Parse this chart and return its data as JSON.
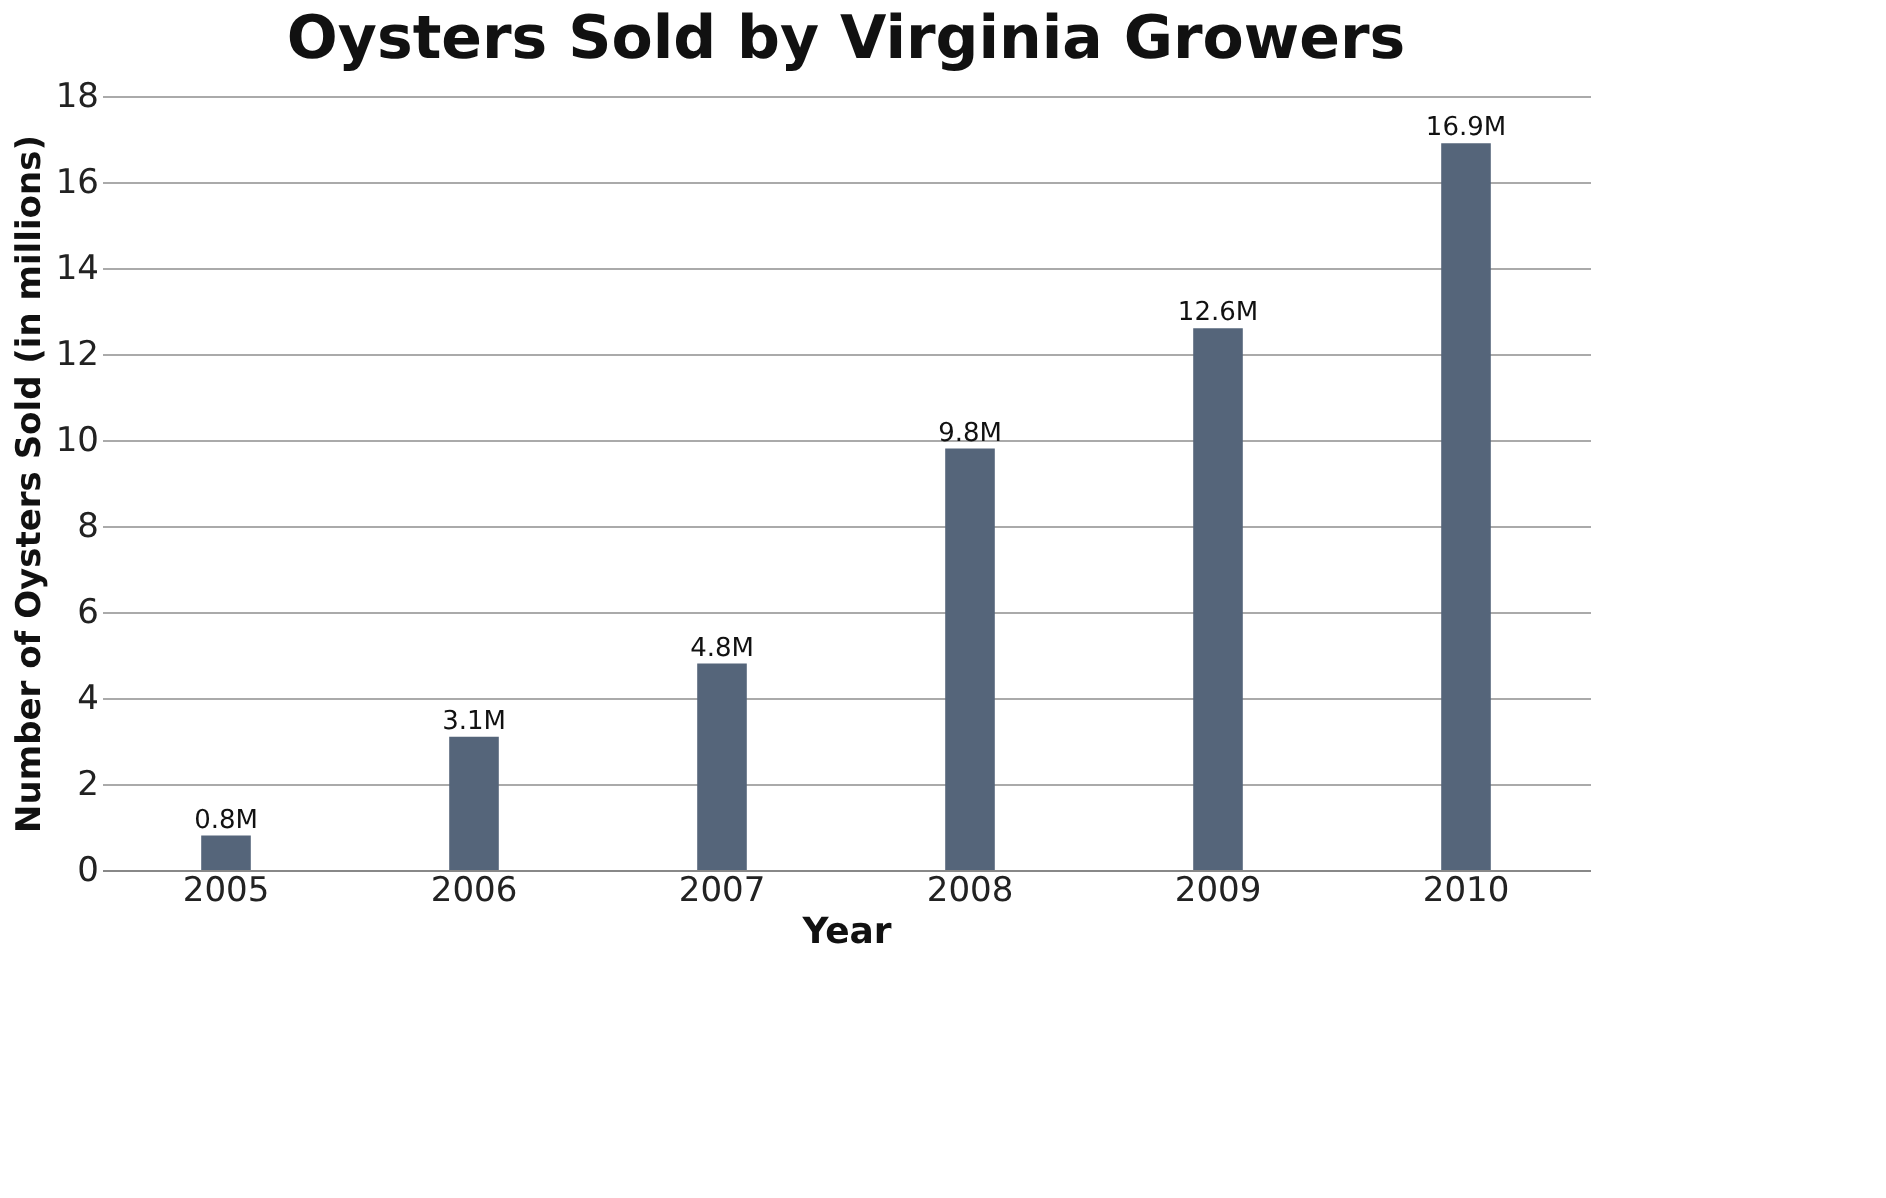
{
  "chart_data": {
    "type": "bar",
    "title": "Oysters Sold by Virginia Growers",
    "xlabel": "Year",
    "ylabel": "Number of Oysters Sold (in millions)",
    "categories": [
      "2005",
      "2006",
      "2007",
      "2008",
      "2009",
      "2010"
    ],
    "values": [
      0.8,
      3.1,
      4.8,
      9.8,
      12.6,
      16.9
    ],
    "value_labels": [
      "0.8M",
      "3.1M",
      "4.8M",
      "9.8M",
      "12.6M",
      "16.9M"
    ],
    "color": "#55657a",
    "ylim": [
      0,
      18
    ],
    "yticks": [
      0,
      2,
      4,
      6,
      8,
      10,
      12,
      14,
      16,
      18
    ],
    "grid": "y"
  }
}
